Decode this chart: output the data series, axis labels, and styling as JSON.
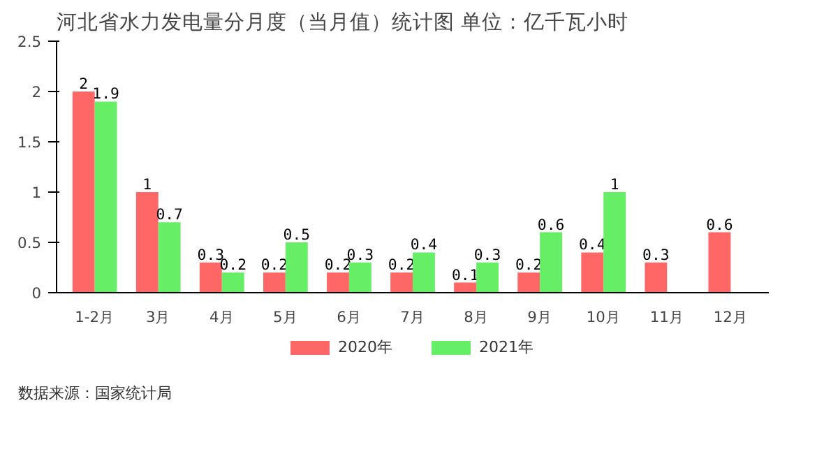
{
  "chart_data": {
    "type": "bar",
    "title": "河北省水力发电量分月度（当月值）统计图 单位：亿千瓦小时",
    "categories": [
      "1-2月",
      "3月",
      "4月",
      "5月",
      "6月",
      "7月",
      "8月",
      "9月",
      "10月",
      "11月",
      "12月"
    ],
    "series": [
      {
        "name": "2020年",
        "color": "#ff6666",
        "values": [
          2,
          1,
          0.3,
          0.2,
          0.2,
          0.2,
          0.1,
          0.2,
          0.4,
          0.3,
          0.6
        ]
      },
      {
        "name": "2021年",
        "color": "#66ee66",
        "values": [
          1.9,
          0.7,
          0.2,
          0.5,
          0.3,
          0.4,
          0.3,
          0.6,
          1,
          null,
          null
        ]
      }
    ],
    "ylim": [
      0,
      2.5
    ],
    "yticks": [
      0,
      0.5,
      1,
      1.5,
      2,
      2.5
    ],
    "grid": false,
    "legend": "bottom",
    "data_labels": true,
    "annotations": [
      "数据来源：国家统计局"
    ]
  }
}
